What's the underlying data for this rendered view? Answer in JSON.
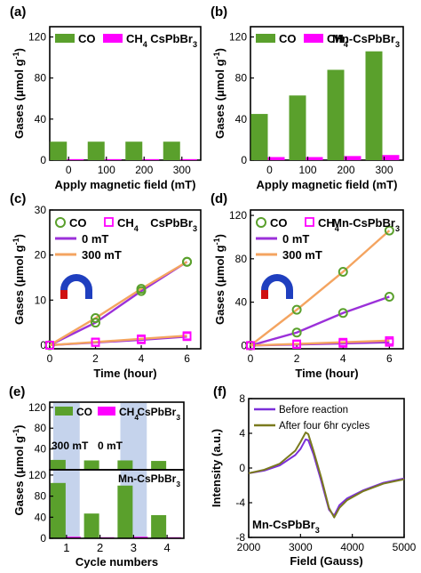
{
  "colors": {
    "co": "#5aa02c",
    "ch4": "#ff00ff",
    "zero_mt": "#9b30d9",
    "mt300": "#f4a460",
    "cspbbr3": "#1f1fd1",
    "mn_cspbbr3": "#e00000",
    "band": "#c5d3ec",
    "before": "#7b2fd9",
    "after": "#7a7a1e"
  },
  "panels": {
    "a": {
      "letter": "(a)",
      "sample": "CsPbBr3"
    },
    "b": {
      "letter": "(b)",
      "sample": "Mn-CsPbBr3"
    },
    "c": {
      "letter": "(c)",
      "sample": "CsPbBr3"
    },
    "d": {
      "letter": "(d)",
      "sample": "Mn-CsPbBr3"
    },
    "e": {
      "letter": "(e)",
      "sample_top": "CsPbBr3",
      "sample_bottom": "Mn-CsPbBr3",
      "field_labels": [
        "300 mT",
        "0 mT"
      ]
    },
    "f": {
      "letter": "(f)",
      "sample": "Mn-CsPbBr3"
    }
  },
  "legend": {
    "co": "CO",
    "ch4": "CH4",
    "zero_mt": "0 mT",
    "mt300": "300 mT",
    "before": "Before reaction",
    "after": "After four 6hr cycles"
  },
  "chart_data": [
    {
      "panel": "a",
      "type": "bar",
      "title": "CsPbBr3",
      "categories": [
        "0",
        "100",
        "200",
        "300"
      ],
      "series": [
        {
          "name": "CO",
          "values": [
            18,
            18,
            18,
            18
          ]
        },
        {
          "name": "CH4",
          "values": [
            1,
            1,
            1,
            1
          ]
        }
      ],
      "xlabel": "Apply magnetic field (mT)",
      "ylabel": "Gases (μmol g-1)",
      "ylim": [
        0,
        130
      ],
      "yticks": [
        0,
        40,
        80,
        120
      ]
    },
    {
      "panel": "b",
      "type": "bar",
      "title": "Mn-CsPbBr3",
      "categories": [
        "0",
        "100",
        "200",
        "300"
      ],
      "series": [
        {
          "name": "CO",
          "values": [
            45,
            63,
            88,
            106
          ]
        },
        {
          "name": "CH4",
          "values": [
            3,
            3,
            4,
            5
          ]
        }
      ],
      "xlabel": "Apply magnetic field (mT)",
      "ylabel": "Gases (μmol g-1)",
      "ylim": [
        0,
        130
      ],
      "yticks": [
        0,
        40,
        80,
        120
      ]
    },
    {
      "panel": "c",
      "type": "line",
      "title": "CsPbBr3",
      "x": [
        0,
        2,
        4,
        6
      ],
      "series": [
        {
          "name": "CO 0 mT",
          "values": [
            0,
            5,
            12,
            18.5
          ]
        },
        {
          "name": "CO 300 mT",
          "values": [
            0,
            6,
            12.5,
            18.5
          ]
        },
        {
          "name": "CH4 0 mT",
          "values": [
            0,
            0.6,
            1.2,
            1.9
          ]
        },
        {
          "name": "CH4 300 mT",
          "values": [
            0,
            0.7,
            1.4,
            2.1
          ]
        }
      ],
      "xlabel": "Time (hour)",
      "ylabel": "Gases (μmol g-1)",
      "xlim": [
        0,
        6.6
      ],
      "ylim": [
        -0.8,
        30
      ],
      "xticks": [
        0,
        2,
        4,
        6
      ],
      "yticks": [
        0,
        10,
        20,
        30
      ]
    },
    {
      "panel": "d",
      "type": "line",
      "title": "Mn-CsPbBr3",
      "x": [
        0,
        2,
        4,
        6
      ],
      "series": [
        {
          "name": "CO 0 mT",
          "values": [
            0,
            12,
            30,
            45
          ]
        },
        {
          "name": "CO 300 mT",
          "values": [
            0,
            33,
            68,
            106
          ]
        },
        {
          "name": "CH4 0 mT",
          "values": [
            0,
            1,
            2,
            3
          ]
        },
        {
          "name": "CH4 300 mT",
          "values": [
            0,
            1.5,
            3,
            4.5
          ]
        }
      ],
      "xlabel": "Time (hour)",
      "ylabel": "Gases (μmol g-1)",
      "xlim": [
        0,
        6.6
      ],
      "ylim": [
        -3,
        125
      ],
      "xticks": [
        0,
        2,
        4,
        6
      ],
      "yticks": [
        0,
        40,
        80,
        120
      ]
    },
    {
      "panel": "e",
      "type": "bar",
      "categories": [
        "1",
        "2",
        "3",
        "4"
      ],
      "series": [
        {
          "name": "CO CsPbBr3",
          "values": [
            19,
            18,
            18,
            17
          ]
        },
        {
          "name": "CH4 CsPbBr3",
          "values": [
            1,
            1,
            1,
            1
          ]
        },
        {
          "name": "CO Mn-CsPbBr3",
          "values": [
            105,
            47,
            100,
            44
          ]
        },
        {
          "name": "CH4 Mn-CsPbBr3",
          "values": [
            3,
            2,
            3,
            2
          ]
        }
      ],
      "xlabel": "Cycle numbers",
      "ylabel": "Gases (μmol g-1)",
      "ylim_top": [
        0,
        130
      ],
      "ylim_bottom": [
        0,
        130
      ],
      "yticks": [
        0,
        40,
        80,
        120
      ]
    },
    {
      "panel": "f",
      "type": "line",
      "x": [
        2000,
        2300,
        2600,
        2900,
        3000,
        3100,
        3150,
        3250,
        3400,
        3550,
        3650,
        3750,
        3900,
        4200,
        4600,
        5000
      ],
      "series": [
        {
          "name": "Before reaction",
          "values": [
            -0.6,
            -0.3,
            0.3,
            1.5,
            2.2,
            3.3,
            3.2,
            1.6,
            -1.5,
            -4.8,
            -5.5,
            -4.3,
            -3.5,
            -2.6,
            -1.7,
            -1.2
          ]
        },
        {
          "name": "After four 6hr cycles",
          "values": [
            -0.6,
            -0.2,
            0.5,
            2.0,
            3.0,
            4.1,
            3.9,
            2.0,
            -1.1,
            -4.6,
            -5.7,
            -4.6,
            -3.7,
            -2.7,
            -1.8,
            -1.3
          ]
        }
      ],
      "xlabel": "Field (Gauss)",
      "ylabel": "Intensity (a.u.)",
      "xlim": [
        2000,
        5000
      ],
      "ylim": [
        -8,
        8
      ],
      "xticks": [
        2000,
        3000,
        4000,
        5000
      ],
      "yticks": [
        -8,
        -4,
        0,
        4,
        8
      ]
    }
  ]
}
